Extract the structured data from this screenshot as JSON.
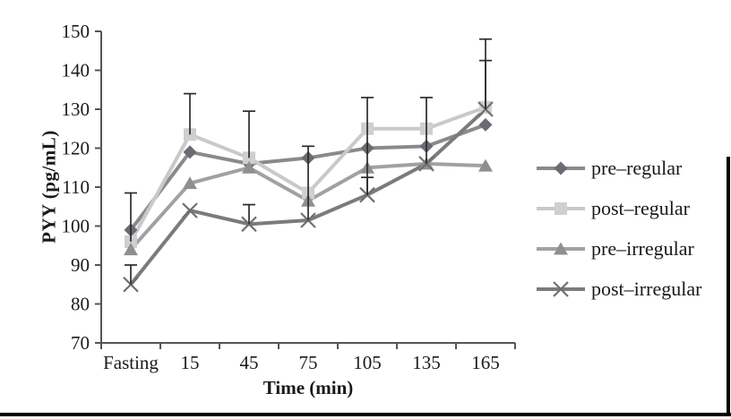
{
  "chart_data": {
    "type": "line",
    "title": "",
    "xlabel": "Time (min)",
    "ylabel": "PYY (pg/mL)",
    "categories": [
      "Fasting",
      "15",
      "45",
      "75",
      "105",
      "135",
      "165"
    ],
    "y_ticks": [
      150,
      140,
      130,
      120,
      110,
      100,
      90,
      80,
      70
    ],
    "ylim": [
      70,
      150
    ],
    "grid": false,
    "legend_position": "right",
    "series": [
      {
        "name": "pre–regular",
        "marker": "diamond",
        "line_color": "#8a8a8a",
        "marker_color": "#6b6b73",
        "values": [
          99,
          119,
          116,
          117.5,
          120,
          120.5,
          126
        ]
      },
      {
        "name": "post–regular",
        "marker": "square",
        "line_color": "#c9c9c9",
        "marker_color": "#cfcfcf",
        "values": [
          96,
          123.5,
          117.5,
          108.5,
          125,
          125,
          130.5
        ]
      },
      {
        "name": "pre–irregular",
        "marker": "triangle",
        "line_color": "#a1a1a1",
        "marker_color": "#8f8f8f",
        "values": [
          94,
          111,
          115,
          106.5,
          115,
          116,
          115.5
        ]
      },
      {
        "name": "post–irregular",
        "marker": "x",
        "line_color": "#7b7b7b",
        "marker_color": "#6f6f6f",
        "values": [
          85,
          104,
          100.5,
          101.5,
          108,
          116,
          130
        ]
      }
    ],
    "error_bars": [
      {
        "category_index": 0,
        "top": 108.5,
        "bottom": 96
      },
      {
        "category_index": 0,
        "top": 90,
        "bottom": 85
      },
      {
        "category_index": 1,
        "top": 134,
        "bottom": 123.5
      },
      {
        "category_index": 2,
        "top": 129.5,
        "bottom": 117.5
      },
      {
        "category_index": 2,
        "top": 105.5,
        "bottom": 100.5
      },
      {
        "category_index": 3,
        "top": 120.5,
        "bottom": 101.5
      },
      {
        "category_index": 4,
        "top": 133,
        "bottom": 108
      },
      {
        "category_index": 4,
        "top": 112.5,
        "bottom": 108
      },
      {
        "category_index": 5,
        "top": 133,
        "bottom": 116
      },
      {
        "category_index": 6,
        "top": 148,
        "bottom": 130
      },
      {
        "category_index": 6,
        "top": 142.5,
        "bottom": 130
      }
    ]
  },
  "colors": {
    "axis": "#555555",
    "error_bar": "#2b2b2b",
    "text": "#1a1a1a",
    "frame_border": "#000000",
    "background": "#ffffff"
  }
}
